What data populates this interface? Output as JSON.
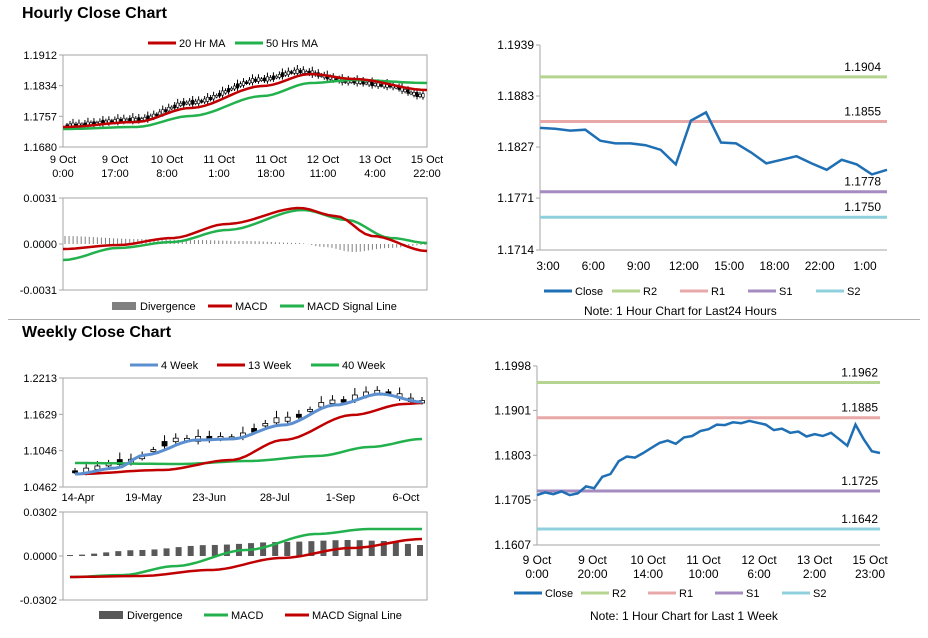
{
  "hourly": {
    "title": "Hourly Close Chart",
    "price_chart": {
      "legend": [
        "20 Hr MA",
        "50 Hrs MA"
      ],
      "colors": {
        "ma20": "#c00000",
        "ma50": "#22b14c",
        "candle": "#000000"
      },
      "y_ticks": [
        "1.1912",
        "1.1834",
        "1.1757",
        "1.1680"
      ],
      "x_ticks": [
        [
          "9 Oct",
          "0:00"
        ],
        [
          "9 Oct",
          "17:00"
        ],
        [
          "10 Oct",
          "8:00"
        ],
        [
          "11 Oct",
          "1:00"
        ],
        [
          "11 Oct",
          "18:00"
        ],
        [
          "12 Oct",
          "11:00"
        ],
        [
          "13 Oct",
          "4:00"
        ],
        [
          "15 Oct",
          "22:00"
        ]
      ]
    },
    "macd_chart": {
      "y_ticks": [
        "0.0031",
        "0.0000",
        "-0.0031"
      ],
      "legend": [
        "Divergence",
        "MACD",
        "MACD Signal Line"
      ],
      "colors": {
        "divergence": "#808080",
        "macd": "#c00000",
        "signal": "#22b14c"
      }
    },
    "levels_chart": {
      "y_ticks": [
        "1.1939",
        "1.1883",
        "1.1827",
        "1.1771",
        "1.1714"
      ],
      "x_ticks": [
        "3:00",
        "6:00",
        "9:00",
        "12:00",
        "15:00",
        "18:00",
        "22:00",
        "1:00"
      ],
      "legend": [
        "Close",
        "R2",
        "R1",
        "S1",
        "S2"
      ],
      "colors": {
        "close": "#1f6fb5",
        "R2": "#b5d48f",
        "R1": "#e8a8a8",
        "S1": "#a48bc0",
        "S2": "#8fd0dc"
      },
      "level_labels": {
        "R2": "1.1904",
        "R1": "1.1855",
        "S1": "1.1778",
        "S2": "1.1750"
      },
      "note": "Note: 1 Hour Chart for Last24 Hours"
    }
  },
  "weekly": {
    "title": "Weekly Close Chart",
    "price_chart": {
      "legend": [
        "4 Week",
        "13 Week",
        "40 Week"
      ],
      "colors": {
        "w4": "#5b8fd0",
        "w13": "#c00000",
        "w40": "#22b14c",
        "candle": "#000000"
      },
      "y_ticks": [
        "1.2213",
        "1.1629",
        "1.1046",
        "1.0462"
      ],
      "x_ticks": [
        "14-Apr",
        "19-May",
        "23-Jun",
        "28-Jul",
        "1-Sep",
        "6-Oct"
      ]
    },
    "macd_chart": {
      "y_ticks": [
        "0.0302",
        "0.0000",
        "-0.0302"
      ],
      "legend": [
        "Divergence",
        "MACD",
        "MACD Signal Line"
      ],
      "colors": {
        "divergence": "#595959",
        "macd": "#22b14c",
        "signal": "#c00000"
      }
    },
    "levels_chart": {
      "y_ticks": [
        "1.1998",
        "1.1901",
        "1.1803",
        "1.1705",
        "1.1607"
      ],
      "x_ticks": [
        [
          "9 Oct",
          "0:00"
        ],
        [
          "9 Oct",
          "20:00"
        ],
        [
          "10 Oct",
          "14:00"
        ],
        [
          "11 Oct",
          "10:00"
        ],
        [
          "12 Oct",
          "6:00"
        ],
        [
          "13 Oct",
          "2:00"
        ],
        [
          "15 Oct",
          "23:00"
        ]
      ],
      "legend": [
        "Close",
        "R2",
        "R1",
        "S1",
        "S2"
      ],
      "colors": {
        "close": "#1f6fb5",
        "R2": "#b5d48f",
        "R1": "#e8a8a8",
        "S1": "#a48bc0",
        "S2": "#8fd0dc"
      },
      "level_labels": {
        "R2": "1.1962",
        "R1": "1.1885",
        "S1": "1.1725",
        "S2": "1.1642"
      },
      "note": "Note: 1 Hour Chart for Last 1 Week"
    }
  },
  "chart_data": [
    {
      "id": "hourly-levels",
      "type": "line",
      "ylim": [
        1.1714,
        1.1939
      ],
      "series": [
        {
          "values": [
            1.1848,
            1.1847,
            1.1845,
            1.1846,
            1.1834,
            1.1831,
            1.1831,
            1.1829,
            1.1824,
            1.1808,
            1.1856,
            1.1865,
            1.1832,
            1.1831,
            1.1821,
            1.1809,
            1.1813,
            1.1817,
            1.1809,
            1.1802,
            1.1813,
            1.1808,
            1.1797,
            1.1802
          ]
        }
      ],
      "levels": {
        "R2": 1.1904,
        "R1": 1.1855,
        "S1": 1.1778,
        "S2": 1.175
      }
    },
    {
      "id": "weekly-levels",
      "type": "line",
      "ylim": [
        1.1607,
        1.1998
      ],
      "series": [
        {
          "values": [
            1.1716,
            1.1722,
            1.1718,
            1.1724,
            1.1716,
            1.172,
            1.1735,
            1.1731,
            1.1756,
            1.1762,
            1.179,
            1.18,
            1.1798,
            1.1808,
            1.1819,
            1.183,
            1.1835,
            1.1828,
            1.1842,
            1.1845,
            1.1856,
            1.186,
            1.187,
            1.1869,
            1.1875,
            1.1873,
            1.1878,
            1.1874,
            1.187,
            1.1858,
            1.1861,
            1.1852,
            1.1855,
            1.1844,
            1.1849,
            1.1845,
            1.1852,
            1.1838,
            1.1824,
            1.187,
            1.1838,
            1.1812,
            1.1808
          ]
        }
      ],
      "levels": {
        "R2": 1.1962,
        "R1": 1.1885,
        "S1": 1.1725,
        "S2": 1.1642
      }
    }
  ]
}
